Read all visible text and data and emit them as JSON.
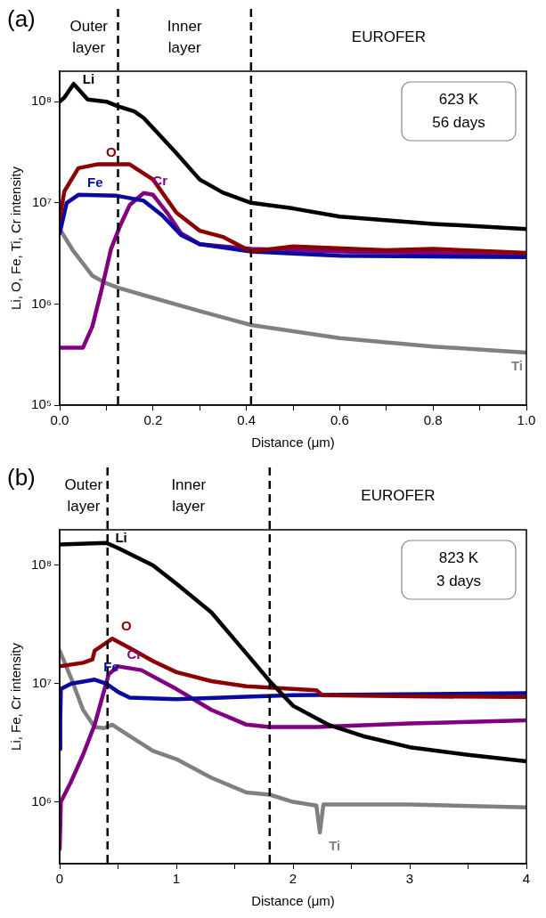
{
  "chart_data": [
    {
      "type": "line",
      "title": "(a)",
      "xlabel": "Distance (μm)",
      "ylabel": "Li, O, Fe, Ti, Cr intensity",
      "log": "y",
      "xlim": [
        0,
        1
      ],
      "xticks": [
        {
          "value": 0,
          "label": "0.0"
        },
        {
          "value": 0.1,
          "label": null
        },
        {
          "value": 0.2,
          "label": "0.2"
        },
        {
          "value": 0.3,
          "label": null
        },
        {
          "value": 0.4,
          "label": "0.4"
        },
        {
          "value": 0.5,
          "label": null
        },
        {
          "value": 0.6,
          "label": "0.6"
        },
        {
          "value": 0.7,
          "label": null
        },
        {
          "value": 0.8,
          "label": "0.8"
        },
        {
          "value": 0.9,
          "label": null
        },
        {
          "value": 1,
          "label": "1.0"
        }
      ],
      "ylim": [
        100000,
        200000000
      ],
      "yticks": [
        {
          "value": 100000,
          "label": "10⁵"
        },
        {
          "value": 1000000,
          "label": "10⁶"
        },
        {
          "value": 10000000,
          "label": "10⁷"
        },
        {
          "value": 100000000,
          "label": "10⁸"
        }
      ],
      "series": [
        {
          "name": "Li",
          "color": "#000000",
          "x": [
            0,
            0.01,
            0.03,
            0.06,
            0.1,
            0.125,
            0.16,
            0.18,
            0.2,
            0.25,
            0.3,
            0.35,
            0.41,
            0.5,
            0.6,
            0.8,
            1
          ],
          "values": [
            100000000,
            110000000,
            150000000,
            105000000,
            100000000,
            90000000,
            80000000,
            69000000,
            55000000,
            31000000,
            17000000,
            12600000,
            10000000,
            8800000,
            7300000,
            6200000,
            5500000
          ]
        },
        {
          "name": "O",
          "color": "#8b0000",
          "x": [
            0,
            0.01,
            0.04,
            0.08,
            0.15,
            0.2,
            0.25,
            0.3,
            0.35,
            0.41,
            0.5,
            0.7,
            0.8,
            1
          ],
          "values": [
            7000000,
            13000000,
            22000000,
            24000000,
            24000000,
            17000000,
            8000000,
            5300000,
            4600000,
            3300000,
            3700000,
            3400000,
            3500000,
            3200000
          ]
        },
        {
          "name": "Fe",
          "color": "#0a0aa0",
          "x": [
            0,
            0.015,
            0.04,
            0.12,
            0.18,
            0.22,
            0.26,
            0.3,
            0.41,
            0.6,
            1
          ],
          "values": [
            5000000,
            10000000,
            12000000,
            11800000,
            10500000,
            7500000,
            4800000,
            3900000,
            3300000,
            3000000,
            2900000
          ]
        },
        {
          "name": "Cr",
          "color": "#800080",
          "x": [
            0,
            0.05,
            0.07,
            0.09,
            0.11,
            0.13,
            0.15,
            0.18,
            0.2,
            0.23,
            0.26,
            0.3,
            0.41,
            0.6,
            1
          ],
          "values": [
            370000,
            370000,
            600000,
            1400000,
            3500000,
            6000000,
            9500000,
            12500000,
            12000000,
            8000000,
            5000000,
            3900000,
            3500000,
            3300000,
            3100000
          ]
        },
        {
          "name": "Ti",
          "color": "#808080",
          "x": [
            0,
            0.03,
            0.07,
            0.1,
            0.125,
            0.2,
            0.3,
            0.41,
            0.6,
            0.8,
            1
          ],
          "values": [
            5500000,
            3300000,
            1900000,
            1600000,
            1450000,
            1150000,
            850000,
            620000,
            460000,
            380000,
            330000
          ]
        }
      ],
      "ref_lines": [
        {
          "axis": "x",
          "value": 0.125,
          "line_style": "dashed"
        },
        {
          "axis": "x",
          "value": 0.41,
          "line_style": "dashed"
        }
      ],
      "annotations": [
        "Outer\nlayer",
        "Inner\nlayer",
        "EUROFER",
        "623 K\n56 days"
      ]
    },
    {
      "type": "line",
      "title": "(b)",
      "xlabel": "Distance (μm)",
      "ylabel": "Li, Fe, Cr intensity",
      "log": "y",
      "xlim": [
        0,
        4
      ],
      "xticks": [
        0,
        {
          "value": 0.5,
          "label": null
        },
        1,
        {
          "value": 1.5,
          "label": null
        },
        2,
        {
          "value": 2.5,
          "label": null
        },
        3,
        {
          "value": 3.5,
          "label": null
        },
        4
      ],
      "ylim": [
        300000,
        200000000
      ],
      "yticks": [
        {
          "value": 1000000,
          "label": "10⁶"
        },
        {
          "value": 10000000,
          "label": "10⁷"
        },
        {
          "value": 100000000,
          "label": "10⁸"
        }
      ],
      "series": [
        {
          "name": "Li",
          "color": "#000000",
          "x": [
            0,
            0.4,
            0.5,
            0.8,
            1,
            1.3,
            1.6,
            1.8,
            2,
            2.3,
            2.6,
            3,
            3.5,
            4
          ],
          "values": [
            150000000,
            155000000,
            140000000,
            100000000,
            70000000,
            40000000,
            18000000,
            10500000,
            6500000,
            4500000,
            3600000,
            2900000,
            2500000,
            2200000
          ]
        },
        {
          "name": "O",
          "color": "#8b0000",
          "x": [
            0,
            0.2,
            0.28,
            0.3,
            0.45,
            0.6,
            0.8,
            1,
            1.3,
            1.6,
            2.2,
            2.25,
            3,
            4
          ],
          "values": [
            14000000,
            15000000,
            16000000,
            19000000,
            24000000,
            20000000,
            15500000,
            12500000,
            10500000,
            9500000,
            8800000,
            8000000,
            7800000,
            7700000
          ]
        },
        {
          "name": "Fe",
          "color": "#0a0aa0",
          "x": [
            0,
            0.005,
            0.01,
            0.1,
            0.3,
            0.4,
            0.5,
            0.6,
            1,
            2,
            4
          ],
          "values": [
            2800000,
            5000000,
            9000000,
            10000000,
            10800000,
            10000000,
            8500000,
            7600000,
            7400000,
            8000000,
            8300000
          ]
        },
        {
          "name": "Cr",
          "color": "#800080",
          "x": [
            0,
            0.01,
            0.1,
            0.2,
            0.3,
            0.37,
            0.42,
            0.5,
            0.7,
            1,
            1.3,
            1.6,
            1.8,
            2.2,
            3,
            4
          ],
          "values": [
            400000,
            1000000,
            1500000,
            2500000,
            4500000,
            8000000,
            12000000,
            14000000,
            13000000,
            9000000,
            6000000,
            4500000,
            4300000,
            4300000,
            4600000,
            4900000
          ]
        },
        {
          "name": "Ti",
          "color": "#808080",
          "x": [
            0,
            0.1,
            0.2,
            0.3,
            0.38,
            0.45,
            0.6,
            0.8,
            1,
            1.3,
            1.6,
            1.8,
            2,
            2.2,
            2.23,
            2.26,
            3,
            4
          ],
          "values": [
            19000000,
            11000000,
            6000000,
            4300000,
            4200000,
            4500000,
            3600000,
            2700000,
            2300000,
            1600000,
            1200000,
            1150000,
            1000000,
            930000,
            550000,
            950000,
            950000,
            900000
          ]
        }
      ],
      "ref_lines": [
        {
          "axis": "x",
          "value": 0.41,
          "line_style": "dashed"
        },
        {
          "axis": "x",
          "value": 1.8,
          "line_style": "dashed"
        }
      ],
      "annotations": [
        "Outer\nlayer",
        "Inner\nlayer",
        "EUROFER",
        "823 K\n3 days"
      ]
    }
  ]
}
